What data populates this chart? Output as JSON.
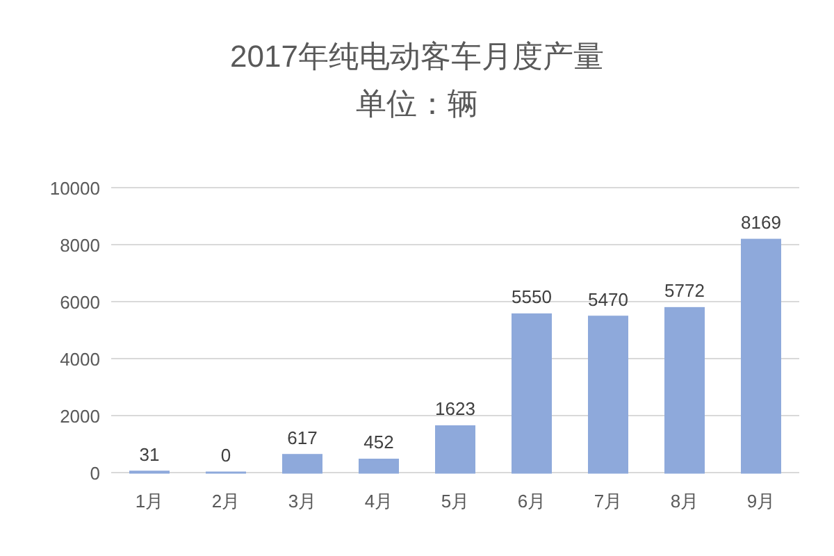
{
  "chart_data": {
    "type": "bar",
    "title": "2017年纯电动客车月度产量",
    "subtitle": "单位：辆",
    "categories": [
      "1月",
      "2月",
      "3月",
      "4月",
      "5月",
      "6月",
      "7月",
      "8月",
      "9月"
    ],
    "values": [
      31,
      0,
      617,
      452,
      1623,
      5550,
      5470,
      5772,
      8169
    ],
    "color": "#8ea9db",
    "ylim": [
      0,
      10000
    ],
    "yticks": [
      0,
      2000,
      4000,
      6000,
      8000,
      10000
    ],
    "grid": "y",
    "data_labels": true
  }
}
